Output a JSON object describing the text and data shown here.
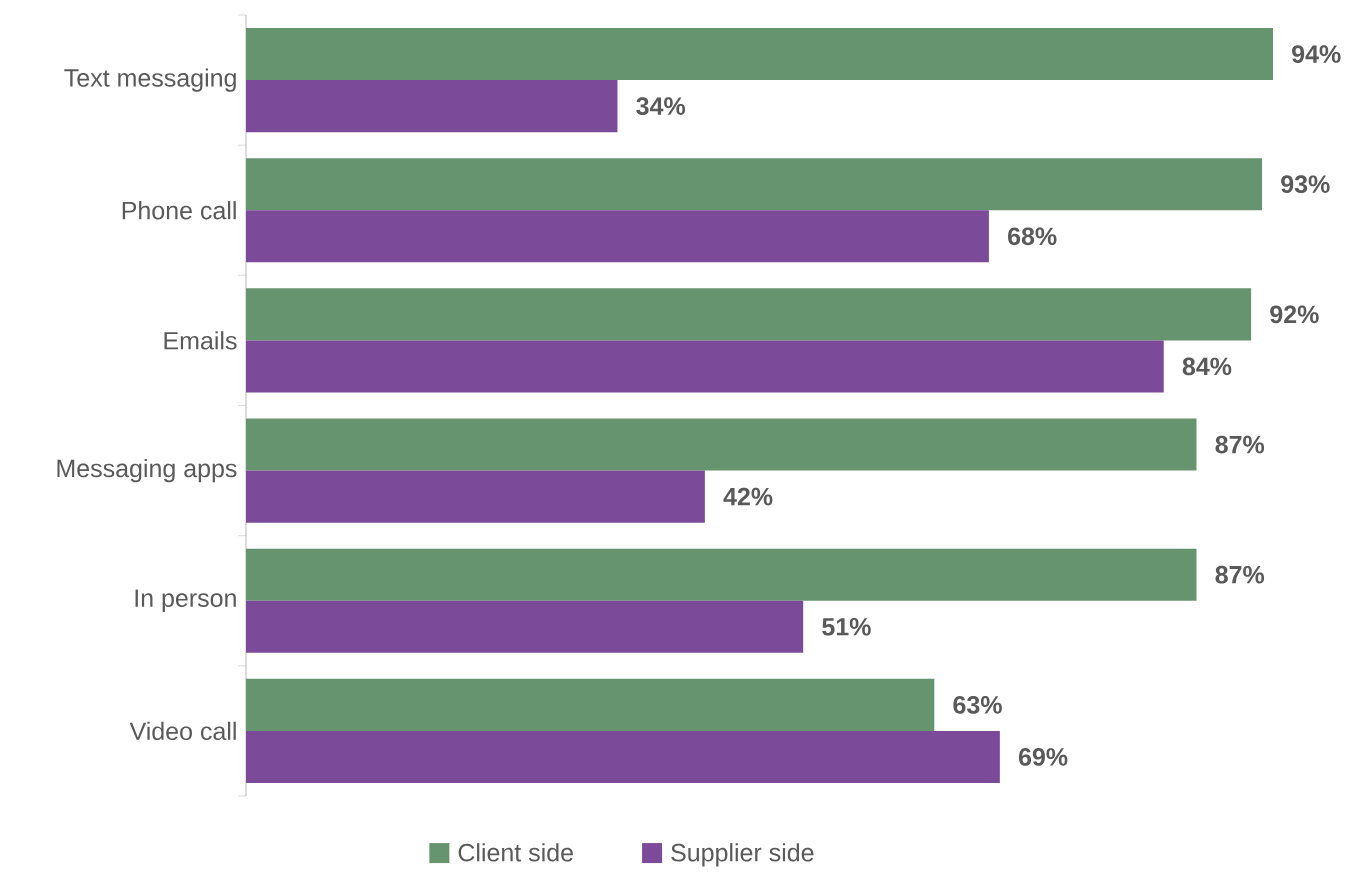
{
  "chart_data": {
    "type": "bar",
    "orientation": "horizontal",
    "categories": [
      "Text messaging",
      "Phone call",
      "Emails",
      "Messaging apps",
      "In person",
      "Video call"
    ],
    "legend": "bottom",
    "tick_labels": "y",
    "series": [
      {
        "name": "Client side",
        "color": "#66946f",
        "values": [
          94,
          93,
          92,
          87,
          87,
          63
        ],
        "value_labels": [
          "94%",
          "93%",
          "92%",
          "87%",
          "87%",
          "63%"
        ]
      },
      {
        "name": "Supplier side",
        "color": "#7b4a99",
        "values": [
          34,
          68,
          84,
          42,
          51,
          69
        ],
        "value_labels": [
          "34%",
          "68%",
          "84%",
          "42%",
          "51%",
          "69%"
        ]
      }
    ]
  }
}
